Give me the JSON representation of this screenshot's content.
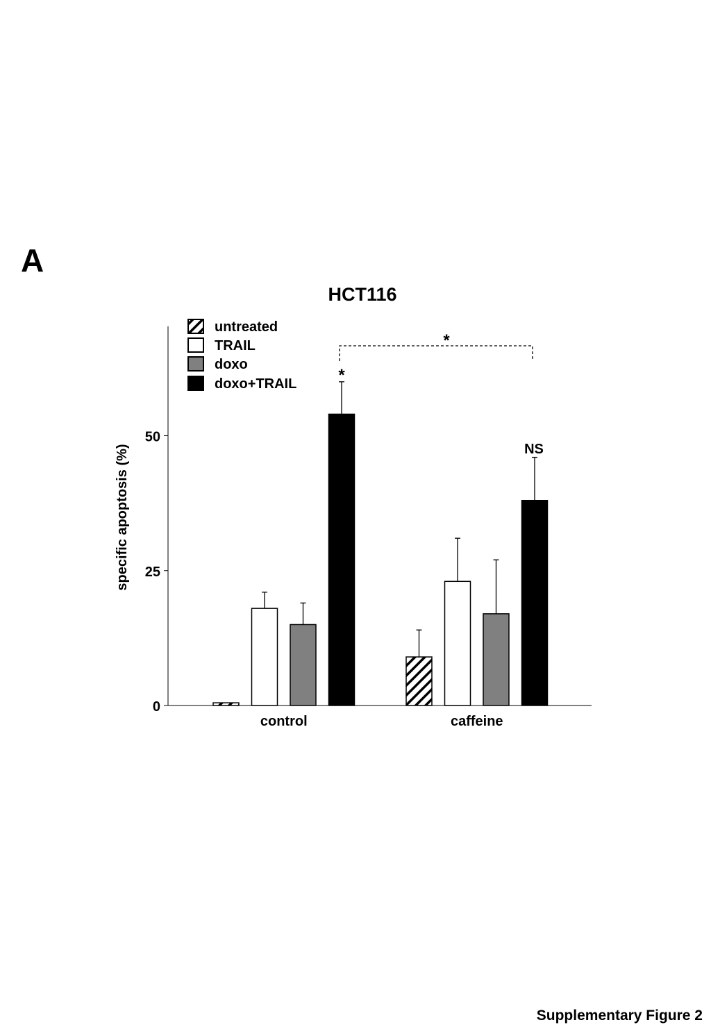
{
  "panel_label": "A",
  "footer": "Supplementary Figure 2",
  "colors": {
    "untreated": "hatched",
    "TRAIL": "#ffffff",
    "doxo": "#808080",
    "doxo+TRAIL": "#000000"
  },
  "chart_data": {
    "type": "bar",
    "title": "HCT116",
    "ylabel": "specific apoptosis (%)",
    "xlabel": "",
    "ylim": [
      0,
      70
    ],
    "yticks": [
      0,
      25,
      50
    ],
    "categories": [
      "control",
      "caffeine"
    ],
    "series": [
      {
        "name": "untreated",
        "values": [
          0.5,
          9
        ],
        "errors": [
          0,
          5
        ],
        "fill": "hatched"
      },
      {
        "name": "TRAIL",
        "values": [
          18,
          23
        ],
        "errors": [
          3,
          8
        ],
        "fill": "#ffffff"
      },
      {
        "name": "doxo",
        "values": [
          15,
          17
        ],
        "errors": [
          4,
          10
        ],
        "fill": "#808080"
      },
      {
        "name": "doxo+TRAIL",
        "values": [
          54,
          38
        ],
        "errors": [
          6,
          8
        ],
        "fill": "#000000"
      }
    ],
    "legend_position": "top-left",
    "annotations": {
      "control_doxo_trail": "*",
      "caffeine_doxo_trail": "NS",
      "comparison_bracket": "*"
    }
  }
}
